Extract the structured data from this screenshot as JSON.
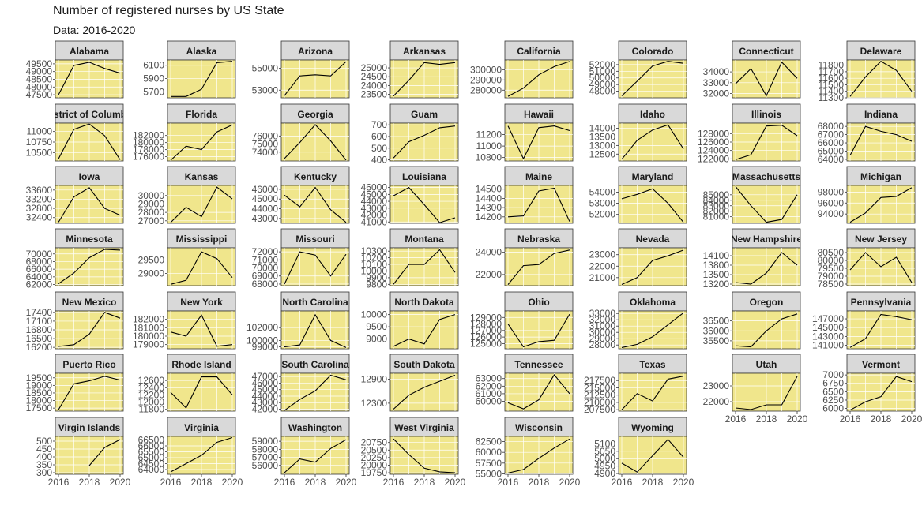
{
  "title": "Number of registered nurses by US State",
  "subtitle": "Data: 2016-2020",
  "colors": {
    "panel_bg": "#f0e68c",
    "strip_bg": "#d9d9d9",
    "line": "#000000",
    "grid": "#ffffff",
    "text": "#4d4d4d"
  },
  "chart_data": {
    "type": "line",
    "facet": "wrap",
    "ncol": 8,
    "x": [
      2016,
      2017,
      2018,
      2019,
      2020
    ],
    "x_ticks": [
      2016,
      2018,
      2020
    ],
    "grid": true,
    "panels": [
      {
        "name": "Alabama",
        "values": [
          47500,
          49400,
          49600,
          49200,
          48900
        ],
        "yticks": [
          47500,
          48000,
          48500,
          49000,
          49500
        ],
        "ylim": [
          47300,
          49750
        ]
      },
      {
        "name": "Alaska",
        "values": [
          5630,
          5630,
          5740,
          6140,
          6160
        ],
        "yticks": [
          5700,
          5900,
          6100
        ],
        "ylim": [
          5610,
          6180
        ]
      },
      {
        "name": "Arizona",
        "values": [
          52500,
          54300,
          54400,
          54300,
          55600
        ],
        "yticks": [
          53000,
          55000
        ],
        "ylim": [
          52300,
          55750
        ]
      },
      {
        "name": "Arkansas",
        "values": [
          23400,
          24300,
          25300,
          25200,
          25300
        ],
        "yticks": [
          23500,
          24000,
          24500,
          25000
        ],
        "ylim": [
          23300,
          25450
        ]
      },
      {
        "name": "California",
        "values": [
          274000,
          282000,
          295000,
          303000,
          308000
        ],
        "yticks": [
          280000,
          290000,
          300000
        ],
        "ylim": [
          272500,
          309500
        ]
      },
      {
        "name": "Colorado",
        "values": [
          47300,
          49500,
          51800,
          52500,
          52200
        ],
        "yticks": [
          48000,
          49000,
          50000,
          51000,
          52000
        ],
        "ylim": [
          47000,
          52700
        ]
      },
      {
        "name": "Connecticut",
        "values": [
          32900,
          34300,
          31800,
          34900,
          33400
        ],
        "yticks": [
          32000,
          33000,
          34000
        ],
        "ylim": [
          31600,
          35100
        ]
      },
      {
        "name": "Delaware",
        "values": [
          11320,
          11620,
          11860,
          11720,
          11400
        ],
        "yticks": [
          11300,
          11400,
          11500,
          11600,
          11700,
          11800
        ],
        "ylim": [
          11300,
          11880
        ]
      },
      {
        "name": "District of Columbia",
        "values": [
          10350,
          11050,
          11180,
          10900,
          10330
        ],
        "yticks": [
          10500,
          10750,
          11000
        ],
        "ylim": [
          10300,
          11200
        ]
      },
      {
        "name": "Florida",
        "values": [
          175000,
          179000,
          178000,
          183000,
          185000
        ],
        "yticks": [
          176000,
          178000,
          180000,
          182000
        ],
        "ylim": [
          174800,
          185500
        ]
      },
      {
        "name": "Georgia",
        "values": [
          73200,
          75200,
          77400,
          75400,
          73000
        ],
        "yticks": [
          74000,
          75000,
          76000
        ],
        "ylim": [
          72900,
          77600
        ]
      },
      {
        "name": "Guam",
        "values": [
          415,
          555,
          610,
          675,
          690
        ],
        "yticks": [
          400,
          500,
          600,
          700
        ],
        "ylim": [
          390,
          715
        ]
      },
      {
        "name": "Hawaii",
        "values": [
          11350,
          10780,
          11320,
          11350,
          11270
        ],
        "yticks": [
          10800,
          11000,
          11200
        ],
        "ylim": [
          10740,
          11400
        ]
      },
      {
        "name": "Idaho",
        "values": [
          12200,
          13300,
          13900,
          14200,
          12800
        ],
        "yticks": [
          12500,
          13000,
          13500,
          14000
        ],
        "ylim": [
          12100,
          14300
        ]
      },
      {
        "name": "Illinois",
        "values": [
          121800,
          123000,
          129800,
          130000,
          127500
        ],
        "yticks": [
          122000,
          124000,
          126000,
          128000
        ],
        "ylim": [
          121500,
          130500
        ]
      },
      {
        "name": "Indiana",
        "values": [
          64500,
          68000,
          67400,
          67000,
          66200
        ],
        "yticks": [
          64000,
          65000,
          66000,
          67000,
          68000
        ],
        "ylim": [
          63800,
          68400
        ]
      },
      {
        "name": "Iowa",
        "values": [
          32200,
          33300,
          33700,
          32800,
          32500
        ],
        "yticks": [
          32400,
          32800,
          33200,
          33600
        ],
        "ylim": [
          32150,
          33800
        ]
      },
      {
        "name": "Kansas",
        "values": [
          26800,
          28600,
          27500,
          31000,
          29600
        ],
        "yticks": [
          27000,
          28000,
          29000,
          30000
        ],
        "ylim": [
          26700,
          31200
        ]
      },
      {
        "name": "Kentucky",
        "values": [
          45400,
          44200,
          46200,
          43900,
          42600
        ],
        "yticks": [
          43000,
          44000,
          45000,
          46000
        ],
        "ylim": [
          42500,
          46400
        ]
      },
      {
        "name": "Louisiana",
        "values": [
          44800,
          46000,
          43500,
          40900,
          41600
        ],
        "yticks": [
          41000,
          42000,
          43000,
          44000,
          45000,
          46000
        ],
        "ylim": [
          40800,
          46300
        ]
      },
      {
        "name": "Maine",
        "values": [
          14200,
          14210,
          14480,
          14510,
          14150
        ],
        "yticks": [
          14200,
          14300,
          14400,
          14500
        ],
        "ylim": [
          14130,
          14540
        ]
      },
      {
        "name": "Maryland",
        "values": [
          53400,
          53800,
          54300,
          53000,
          51300
        ],
        "yticks": [
          52000,
          53000,
          54000
        ],
        "ylim": [
          51200,
          54600
        ]
      },
      {
        "name": "Massachusetts",
        "values": [
          86500,
          83000,
          80000,
          80500,
          85000
        ],
        "yticks": [
          81000,
          82000,
          83000,
          84000,
          85000
        ],
        "ylim": [
          79800,
          86700
        ]
      },
      {
        "name": "Michigan",
        "values": [
          92500,
          94200,
          97000,
          97200,
          98800
        ],
        "yticks": [
          94000,
          96000,
          98000
        ],
        "ylim": [
          92300,
          99200
        ]
      },
      {
        "name": "Minnesota",
        "values": [
          62200,
          65000,
          69000,
          71200,
          71000
        ],
        "yticks": [
          62000,
          64000,
          66000,
          68000,
          70000
        ],
        "ylim": [
          61700,
          71600
        ]
      },
      {
        "name": "Mississippi",
        "values": [
          28600,
          28750,
          29800,
          29550,
          28850
        ],
        "yticks": [
          29000,
          29500
        ],
        "ylim": [
          28550,
          29950
        ]
      },
      {
        "name": "Missouri",
        "values": [
          68000,
          72000,
          71600,
          69000,
          71700
        ],
        "yticks": [
          68000,
          69000,
          70000,
          71000,
          72000
        ],
        "ylim": [
          67800,
          72500
        ]
      },
      {
        "name": "Montana",
        "values": [
          9800,
          10100,
          10100,
          10320,
          9980
        ],
        "yticks": [
          9800,
          9900,
          10000,
          10100,
          10200,
          10300
        ],
        "ylim": [
          9780,
          10350
        ]
      },
      {
        "name": "Nebraska",
        "values": [
          21100,
          22800,
          22900,
          23900,
          24200
        ],
        "yticks": [
          22000,
          24000
        ],
        "ylim": [
          21000,
          24400
        ]
      },
      {
        "name": "Nevada",
        "values": [
          20400,
          21000,
          22500,
          22900,
          23400
        ],
        "yticks": [
          21000,
          22000,
          23000
        ],
        "ylim": [
          20300,
          23600
        ]
      },
      {
        "name": "New Hampshire",
        "values": [
          13250,
          13200,
          13550,
          14200,
          13800
        ],
        "yticks": [
          13200,
          13500,
          13800,
          14100
        ],
        "ylim": [
          13150,
          14350
        ]
      },
      {
        "name": "New Jersey",
        "values": [
          79400,
          80500,
          79600,
          80200,
          78600
        ],
        "yticks": [
          78500,
          79000,
          79500,
          80000,
          80500
        ],
        "ylim": [
          78400,
          80800
        ]
      },
      {
        "name": "New Mexico",
        "values": [
          16230,
          16290,
          16650,
          17400,
          17200
        ],
        "yticks": [
          16200,
          16500,
          16800,
          17100,
          17400
        ],
        "ylim": [
          16150,
          17450
        ]
      },
      {
        "name": "New York",
        "values": [
          180500,
          180000,
          182500,
          178800,
          179000
        ],
        "yticks": [
          179000,
          180000,
          181000,
          182000
        ],
        "ylim": [
          178500,
          183000
        ]
      },
      {
        "name": "North Carolina",
        "values": [
          99000,
          99300,
          104000,
          100000,
          98900
        ],
        "yticks": [
          99000,
          100000,
          102000
        ],
        "ylim": [
          98700,
          104600
        ]
      },
      {
        "name": "North Dakota",
        "values": [
          8700,
          9000,
          8800,
          9800,
          10000
        ],
        "yticks": [
          9000,
          9500,
          10000
        ],
        "ylim": [
          8600,
          10150
        ]
      },
      {
        "name": "Ohio",
        "values": [
          128000,
          124500,
          125300,
          125500,
          129500
        ],
        "yticks": [
          125000,
          126000,
          127000,
          128000,
          129000
        ],
        "ylim": [
          124200,
          130000
        ]
      },
      {
        "name": "Oklahoma",
        "values": [
          27600,
          28100,
          29300,
          31200,
          33100
        ],
        "yticks": [
          28000,
          29000,
          30000,
          31000,
          32000,
          33000
        ],
        "ylim": [
          27400,
          33400
        ]
      },
      {
        "name": "Oregon",
        "values": [
          35250,
          35200,
          36000,
          36600,
          36850
        ],
        "yticks": [
          35500,
          36000,
          36500
        ],
        "ylim": [
          35100,
          37000
        ]
      },
      {
        "name": "Pennsylvania",
        "values": [
          140500,
          142500,
          148000,
          147500,
          146800
        ],
        "yticks": [
          141000,
          143000,
          145000,
          147000
        ],
        "ylim": [
          140200,
          148800
        ]
      },
      {
        "name": "Puerto Rico",
        "values": [
          17400,
          19100,
          19300,
          19600,
          19350
        ],
        "yticks": [
          17500,
          18000,
          18500,
          19000,
          19500
        ],
        "ylim": [
          17300,
          19800
        ]
      },
      {
        "name": "Rhode Island",
        "values": [
          12270,
          11840,
          12700,
          12700,
          12200
        ],
        "yticks": [
          11800,
          12000,
          12200,
          12400,
          12600
        ],
        "ylim": [
          11750,
          12800
        ]
      },
      {
        "name": "South Carolina",
        "values": [
          41800,
          43500,
          44800,
          47200,
          46500
        ],
        "yticks": [
          42000,
          43000,
          44000,
          45000,
          46000,
          47000
        ],
        "ylim": [
          41700,
          47500
        ]
      },
      {
        "name": "South Dakota",
        "values": [
          12150,
          12500,
          12700,
          12850,
          13000
        ],
        "yticks": [
          12300,
          12900
        ],
        "ylim": [
          12100,
          13050
        ]
      },
      {
        "name": "Tennessee",
        "values": [
          59800,
          59000,
          60200,
          63500,
          61000
        ],
        "yticks": [
          60000,
          61000,
          62000,
          63000
        ],
        "ylim": [
          58700,
          63700
        ]
      },
      {
        "name": "Texas",
        "values": [
          207500,
          213000,
          210500,
          218000,
          219000
        ],
        "yticks": [
          207500,
          210000,
          212500,
          215000,
          217500
        ],
        "ylim": [
          207000,
          220000
        ]
      },
      {
        "name": "Utah",
        "values": [
          21600,
          21500,
          21800,
          21800,
          23600
        ],
        "yticks": [
          22000,
          23000
        ],
        "ylim": [
          21400,
          23800
        ]
      },
      {
        "name": "Vermont",
        "values": [
          5950,
          6200,
          6350,
          6950,
          6800
        ],
        "yticks": [
          6000,
          6250,
          6500,
          6750,
          7000
        ],
        "ylim": [
          5920,
          7050
        ]
      },
      {
        "name": "Virgin Islands",
        "values": [
          null,
          null,
          345,
          460,
          510
        ],
        "yticks": [
          300,
          350,
          400,
          450,
          500
        ],
        "ylim": [
          290,
          530
        ]
      },
      {
        "name": "Virginia",
        "values": [
          63800,
          64500,
          65200,
          66300,
          66700
        ],
        "yticks": [
          64000,
          64500,
          65000,
          65500,
          66000,
          66500
        ],
        "ylim": [
          63600,
          66800
        ]
      },
      {
        "name": "Washington",
        "values": [
          55100,
          56800,
          56400,
          58100,
          59200
        ],
        "yticks": [
          56000,
          57000,
          58000,
          59000
        ],
        "ylim": [
          54900,
          59600
        ]
      },
      {
        "name": "West Virginia",
        "values": [
          20870,
          20350,
          19900,
          19780,
          19750
        ],
        "yticks": [
          19750,
          20000,
          20250,
          20500,
          20750
        ],
        "ylim": [
          19700,
          20950
        ]
      },
      {
        "name": "Wisconsin",
        "values": [
          55200,
          56000,
          58600,
          61000,
          63100
        ],
        "yticks": [
          55000,
          57500,
          60000,
          62500
        ],
        "ylim": [
          54900,
          63700
        ]
      },
      {
        "name": "Wyoming",
        "values": [
          4970,
          4910,
          5020,
          5130,
          5010
        ],
        "yticks": [
          4900,
          4950,
          5000,
          5050,
          5100
        ],
        "ylim": [
          4895,
          5150
        ]
      }
    ]
  }
}
